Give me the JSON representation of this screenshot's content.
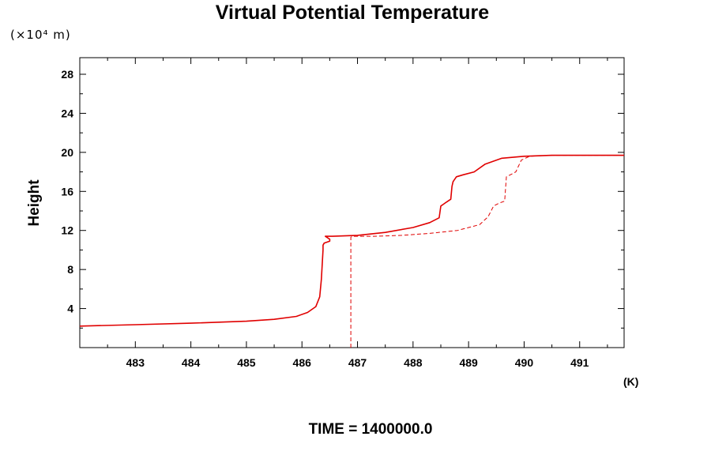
{
  "chart_data": {
    "type": "line",
    "title": "Virtual Potential Temperature",
    "y_unit_label": "(×10⁴ m)",
    "x_unit_label": "(K)",
    "ylabel": "Height",
    "footer": "TIME = 1400000.0",
    "xlim": [
      482.0,
      491.8
    ],
    "ylim": [
      0.0,
      29.7
    ],
    "x_ticks": [
      "483",
      "484",
      "485",
      "486",
      "487",
      "488",
      "489",
      "490",
      "491"
    ],
    "y_ticks": [
      "4",
      "8",
      "12",
      "16",
      "20",
      "24",
      "28"
    ],
    "line_color": "#e00000",
    "series": [
      {
        "style": "solid",
        "x": [
          482.0,
          483.0,
          484.0,
          485.0,
          485.5,
          485.9,
          486.1,
          486.25,
          486.32,
          486.35,
          486.37,
          486.38,
          486.38,
          486.4,
          486.5,
          486.5,
          486.42,
          486.55,
          487.0,
          487.5,
          488.0,
          488.3,
          488.47,
          488.5,
          488.55,
          488.6,
          488.68,
          488.7,
          488.72,
          488.78,
          488.9,
          489.1,
          489.3,
          489.6,
          490.0,
          490.5,
          491.0,
          491.8
        ],
        "y": [
          2.2,
          2.35,
          2.5,
          2.7,
          2.9,
          3.2,
          3.6,
          4.2,
          5.2,
          7.0,
          9.0,
          10.0,
          10.5,
          10.7,
          10.9,
          11.1,
          11.4,
          11.4,
          11.5,
          11.8,
          12.3,
          12.8,
          13.3,
          14.5,
          14.7,
          14.9,
          15.2,
          16.5,
          17.0,
          17.5,
          17.7,
          18.0,
          18.8,
          19.4,
          19.6,
          19.7,
          19.7,
          19.7
        ]
      },
      {
        "style": "dashed",
        "x": [
          486.88,
          486.88,
          486.9,
          487.3,
          487.8,
          488.3,
          488.8,
          489.2,
          489.35,
          489.45,
          489.55,
          489.65,
          489.68,
          489.75,
          489.85,
          489.95,
          490.1,
          490.5,
          491.0,
          491.8
        ],
        "y": [
          0.0,
          11.3,
          11.4,
          11.4,
          11.5,
          11.7,
          12.0,
          12.6,
          13.4,
          14.5,
          14.8,
          15.0,
          17.5,
          17.7,
          18.0,
          19.2,
          19.6,
          19.7,
          19.7,
          19.7
        ]
      }
    ]
  }
}
